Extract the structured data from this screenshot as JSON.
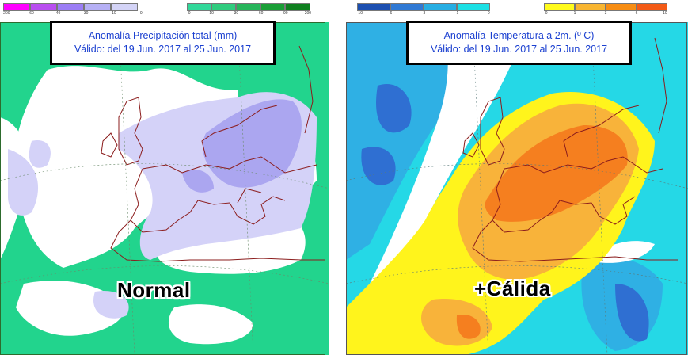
{
  "left_panel": {
    "title_line1": "Anomalía Precipitación total (mm)",
    "title_line2": "Válido: del 19 Jun. 2017 al 25 Jun. 2017",
    "label": "Normal",
    "negative_scale": {
      "ticks": [
        "-200",
        "-60",
        "-40",
        "-30",
        "-10",
        "0"
      ],
      "colors": [
        "#ff00ff",
        "#b94ef0",
        "#9b7df5",
        "#b6b0f5",
        "#d4d4f7"
      ]
    },
    "positive_scale": {
      "ticks": [
        "0",
        "10",
        "30",
        "60",
        "90",
        "200"
      ],
      "colors": [
        "#32d89a",
        "#2fcc7e",
        "#26b55a",
        "#1a9e36",
        "#0f7f1f"
      ]
    },
    "colors": {
      "normal": "#ffffff",
      "wet_light": "#22d48d",
      "dry_light": "#d4d2f8",
      "dry_mid": "#aba6f0",
      "coast": "#8b1c1c",
      "frame": "#2d6b2d"
    }
  },
  "right_panel": {
    "title_line1": "Anomalía Temperatura a 2m. (º C)",
    "title_line2": "Válido: del 19 Jun. 2017 al 25 Jun. 2017",
    "label": "+Cálida",
    "negative_scale": {
      "ticks": [
        "-10",
        "-6",
        "-3",
        "-1",
        "0"
      ],
      "colors": [
        "#1c4fb0",
        "#2f79d4",
        "#27aee3",
        "#1be0e5"
      ]
    },
    "positive_scale": {
      "ticks": [
        "0",
        "1",
        "3",
        "6",
        "10"
      ],
      "colors": [
        "#fffb1c",
        "#f8b531",
        "#f78d13",
        "#f35a16"
      ]
    },
    "colors": {
      "normal": "#ffffff",
      "cold_light": "#25d8e6",
      "cold_mid": "#2fb0e4",
      "cold_deep": "#2f6fd2",
      "warm_light": "#fff41c",
      "warm_mid": "#f8b33a",
      "warm_deep": "#f57f1f",
      "coast": "#8b1c1c"
    }
  }
}
